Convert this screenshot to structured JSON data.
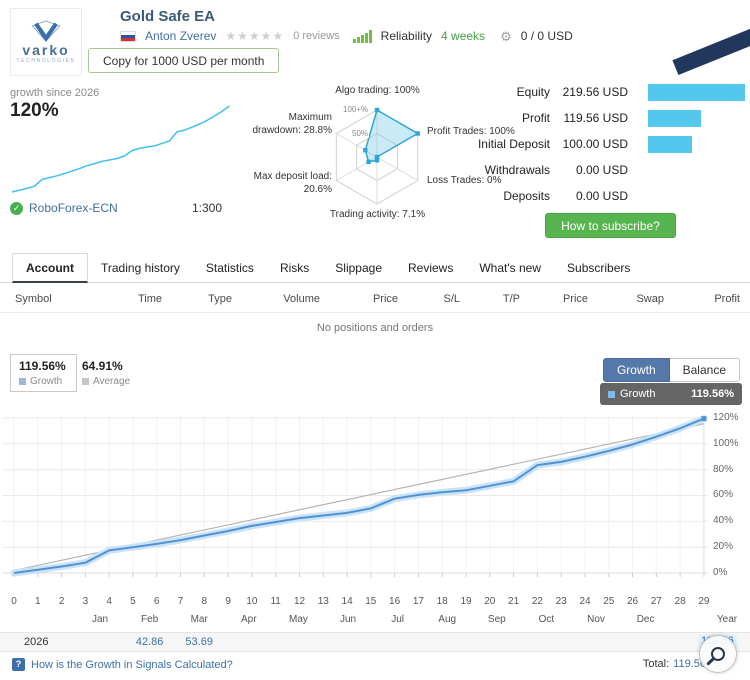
{
  "icons": {
    "star": "★",
    "gear": "⚙",
    "check": "✓",
    "help": "?"
  },
  "header": {
    "logo": {
      "brand": "varko",
      "sub": "TECHNOLOGIES"
    },
    "title": "Gold Safe EA",
    "author": "Anton Zverev",
    "reviews_text": "0 reviews",
    "reliability_label": "Reliability",
    "age_text": "4 weeks",
    "fee_text": "0 / 0 USD",
    "copy_button": "Copy for 1000 USD per month"
  },
  "overview": {
    "growth_label": "growth since 2026",
    "growth_value": "120%",
    "broker": "RoboForex-ECN",
    "leverage": "1:300",
    "stats": [
      {
        "label": "Equity",
        "value": "219.56 USD",
        "num": 219.56
      },
      {
        "label": "Profit",
        "value": "119.56 USD",
        "num": 119.56
      },
      {
        "label": "Initial Deposit",
        "value": "100.00 USD",
        "num": 100.0
      },
      {
        "label": "Withdrawals",
        "value": "0.00 USD",
        "num": 0
      },
      {
        "label": "Deposits",
        "value": "0.00 USD",
        "num": 0
      }
    ],
    "subscribe_button": "How to subscribe?"
  },
  "tabs": [
    "Account",
    "Trading history",
    "Statistics",
    "Risks",
    "Slippage",
    "Reviews",
    "What's new",
    "Subscribers"
  ],
  "active_tab": "Account",
  "positions": {
    "columns": [
      "Symbol",
      "Time",
      "Type",
      "Volume",
      "Price",
      "S/L",
      "T/P",
      "Price",
      "Swap",
      "Profit"
    ],
    "empty": "No positions and orders"
  },
  "growth_panel": {
    "growth_pct": "119.56%",
    "growth_label": "Growth",
    "average_pct": "64.91%",
    "average_label": "Average",
    "buttons": [
      "Growth",
      "Balance"
    ],
    "active_button": "Growth",
    "tooltip": {
      "label": "Growth",
      "value": "119.56%"
    }
  },
  "chart_data": [
    {
      "type": "line",
      "name": "account-growth-chart",
      "title": "Growth",
      "x": [
        0,
        1,
        2,
        3,
        4,
        5,
        6,
        7,
        8,
        9,
        10,
        11,
        12,
        13,
        14,
        15,
        16,
        17,
        18,
        19,
        20,
        21,
        22,
        23,
        24,
        25,
        26,
        27,
        28,
        29
      ],
      "series": [
        {
          "name": "Growth",
          "color": "#4f93d6",
          "values": [
            0,
            2.5,
            5,
            8,
            17.5,
            20,
            22.5,
            25.5,
            29,
            32.5,
            36.5,
            39.5,
            42.5,
            44.5,
            46.5,
            50,
            57.5,
            60.5,
            62.5,
            64,
            67.5,
            71,
            83.5,
            86,
            90,
            94.5,
            99.5,
            105.5,
            112,
            119.56
          ]
        }
      ],
      "trend_line": {
        "start_pct": 2,
        "end_pct": 115.5,
        "color": "#b5b5b5"
      },
      "yticks": [
        {
          "label": "0%",
          "value": 0
        },
        {
          "label": "20%",
          "value": 20
        },
        {
          "label": "40%",
          "value": 40
        },
        {
          "label": "60%",
          "value": 60
        },
        {
          "label": "80%",
          "value": 80
        },
        {
          "label": "100%",
          "value": 100
        },
        {
          "label": "120%",
          "value": 120
        }
      ],
      "ylim": [
        0,
        135
      ],
      "grid": true,
      "legend_position": "top-right",
      "months": [
        "Jan",
        "Feb",
        "Mar",
        "Apr",
        "May",
        "Jun",
        "Jul",
        "Aug",
        "Sep",
        "Oct",
        "Nov",
        "Dec"
      ],
      "year_axis_label": "Year"
    },
    {
      "type": "radar",
      "name": "signal-quality-radar",
      "rings": [
        {
          "label": "100+%",
          "pct": 100
        },
        {
          "label": "50%",
          "pct": 50
        }
      ],
      "axes": [
        {
          "label": "Algo trading: 100%",
          "pct": 100
        },
        {
          "label": "Profit Trades: 100%",
          "pct": 100
        },
        {
          "label": "Loss Trades: 0%",
          "pct": 0
        },
        {
          "label": "Trading activity: 7.1%",
          "pct": 7.1
        },
        {
          "label": "Max deposit load:\n20.6%",
          "pct": 20.6
        },
        {
          "label": "Maximum\ndrawdown: 28.8%",
          "pct": 28.8
        }
      ],
      "fill": "rgba(105,196,235,0.35)",
      "stroke": "#2aa6d8"
    }
  ],
  "footer": {
    "year": "2026",
    "monthly": [
      {
        "month": "Feb",
        "value": "42.86"
      },
      {
        "month": "Mar",
        "value": "53.69"
      }
    ],
    "current_value": "119.56",
    "link": "How is the Growth in Signals Calculated?",
    "total_label": "Total:",
    "total_value": "119.56"
  }
}
